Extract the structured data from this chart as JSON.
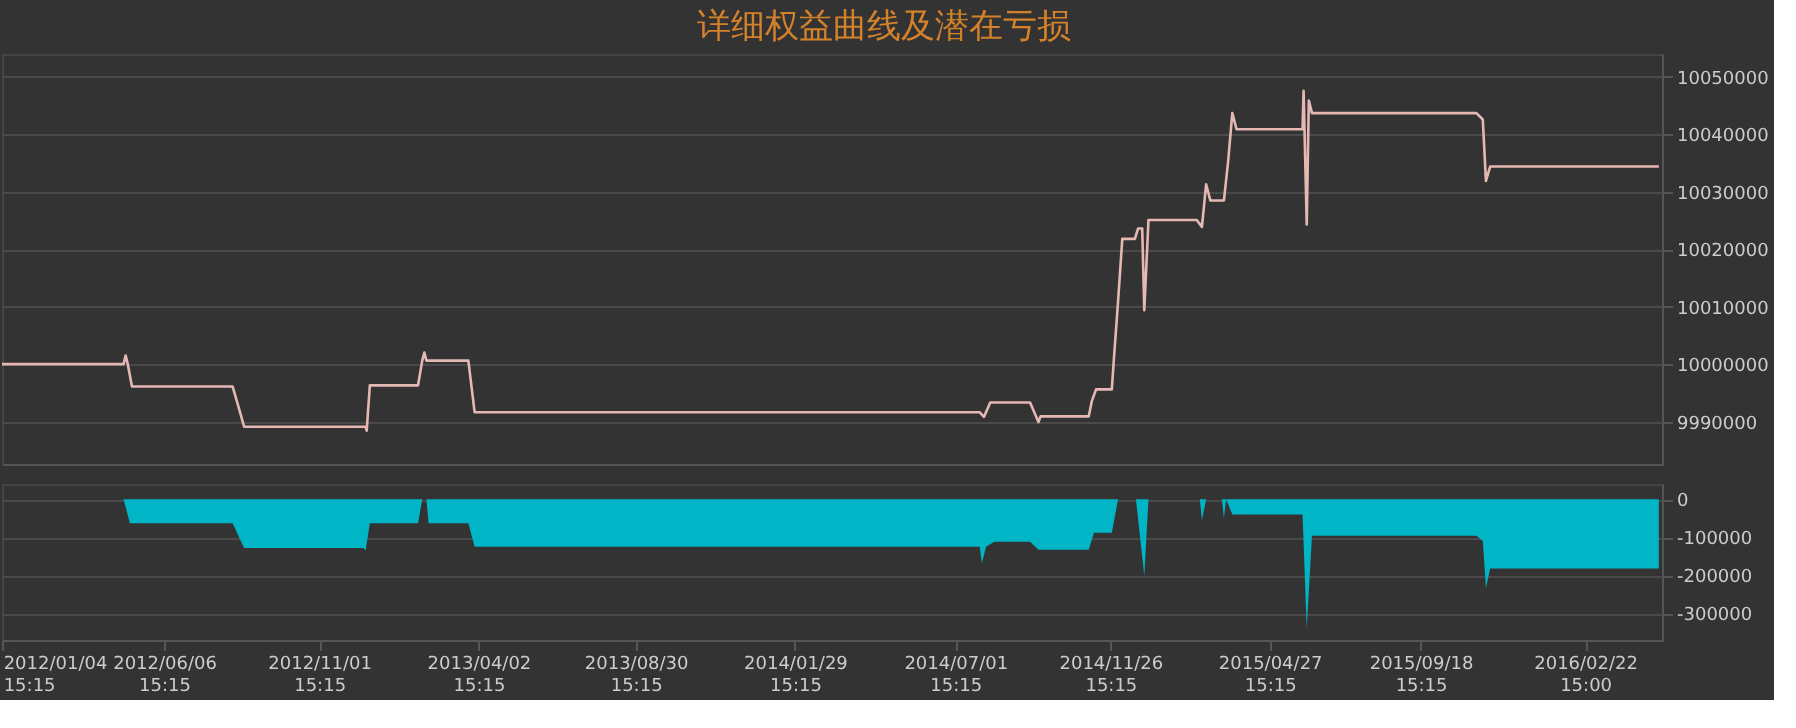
{
  "chart_data": [
    {
      "type": "line",
      "title": "详细权益曲线及潜在亏损",
      "color": "#e6b8b4",
      "x": [
        "2012-01-04",
        "2012-04-29",
        "2012-05-01",
        "2012-05-03",
        "2012-05-07",
        "2012-08-11",
        "2012-08-16",
        "2012-08-22",
        "2012-12-16",
        "2012-12-17",
        "2012-12-20",
        "2013-02-04",
        "2013-02-08",
        "2013-02-10",
        "2013-02-12",
        "2013-03-24",
        "2013-03-30",
        "2014-07-25",
        "2014-07-29",
        "2014-08-04",
        "2014-09-11",
        "2014-09-19",
        "2014-09-21",
        "2014-11-06",
        "2014-11-09",
        "2014-11-13",
        "2014-11-28",
        "2014-11-30",
        "2014-12-04",
        "2014-12-08",
        "2014-12-20",
        "2014-12-23",
        "2014-12-27",
        "2014-12-29",
        "2015-01-02",
        "2015-02-17",
        "2015-02-22",
        "2015-02-26",
        "2015-03-02",
        "2015-03-15",
        "2015-03-19",
        "2015-03-23",
        "2015-03-27",
        "2015-05-29",
        "2015-05-30",
        "2015-06-02",
        "2015-06-04",
        "2015-06-07",
        "2015-11-11",
        "2015-11-17",
        "2015-11-20",
        "2015-11-24",
        "2016-05-03"
      ],
      "values": [
        10000000,
        10000000,
        10001500,
        10000000,
        9996100,
        9996100,
        9993000,
        9989100,
        9989100,
        9988400,
        9996300,
        9996300,
        10000600,
        10002000,
        10000600,
        10000600,
        9991600,
        9991600,
        9990800,
        9993300,
        9993300,
        9989900,
        9990900,
        9990900,
        9993600,
        9995600,
        9995600,
        10000900,
        10011000,
        10021800,
        10021800,
        10023600,
        10023600,
        10009400,
        10025100,
        10025100,
        10023900,
        10031300,
        10028500,
        10028500,
        10035300,
        10043700,
        10040900,
        10040900,
        10047600,
        10024300,
        10045900,
        10043700,
        10043700,
        10042600,
        10031900,
        10034400,
        10034400
      ],
      "xlim": [
        "2012-01-04",
        "2016-05-06"
      ],
      "ylim": [
        9982600,
        10054000
      ],
      "yticks": [
        9990000,
        10000000,
        10010000,
        10020000,
        10030000,
        10040000,
        10050000
      ],
      "grid": "y",
      "tick_labels": "y"
    },
    {
      "type": "area",
      "color": "#00b5c6",
      "x": [
        "2012-01-04",
        "2012-04-29",
        "2012-05-05",
        "2012-08-11",
        "2012-08-22",
        "2012-12-14",
        "2012-12-16",
        "2012-12-20",
        "2013-02-04",
        "2013-02-08",
        "2013-02-12",
        "2013-02-14",
        "2013-03-24",
        "2013-03-30",
        "2014-07-25",
        "2014-07-27",
        "2014-07-31",
        "2014-08-08",
        "2014-09-11",
        "2014-09-19",
        "2014-11-06",
        "2014-11-11",
        "2014-11-28",
        "2014-12-04",
        "2014-12-21",
        "2014-12-29",
        "2015-01-02",
        "2015-02-20",
        "2015-02-22",
        "2015-02-26",
        "2015-03-13",
        "2015-03-15",
        "2015-03-17",
        "2015-03-23",
        "2015-05-29",
        "2015-06-02",
        "2015-06-07",
        "2015-11-11",
        "2015-11-17",
        "2015-11-20",
        "2015-11-24",
        "2016-05-03"
      ],
      "values": [
        0,
        0,
        -63000,
        -63000,
        -128000,
        -128000,
        -135000,
        -63000,
        -63000,
        0,
        0,
        -63000,
        -63000,
        -125000,
        -125000,
        -169000,
        -125000,
        -112000,
        -112000,
        -133000,
        -133000,
        -88000,
        -88000,
        0,
        0,
        -201000,
        0,
        0,
        -55000,
        0,
        0,
        -50000,
        0,
        -40000,
        -40000,
        -340000,
        -96000,
        -96000,
        -110000,
        -234000,
        -182000,
        -182000
      ],
      "xlim": [
        "2012-01-04",
        "2016-05-06"
      ],
      "ylim": [
        -370000,
        40000
      ],
      "yticks": [
        -300000,
        -200000,
        -100000,
        0
      ],
      "xticks": [
        {
          "value": "2012-01-04T15:15",
          "label": "2012/01/04 15:15"
        },
        {
          "value": "2012-06-06T15:15",
          "label": "2012/06/06 15:15"
        },
        {
          "value": "2012-11-01T15:15",
          "label": "2012/11/01 15:15"
        },
        {
          "value": "2013-04-02T15:15",
          "label": "2013/04/02 15:15"
        },
        {
          "value": "2013-08-30T15:15",
          "label": "2013/08/30 15:15"
        },
        {
          "value": "2014-01-29T15:15",
          "label": "2014/01/29 15:15"
        },
        {
          "value": "2014-07-01T15:15",
          "label": "2014/07/01 15:15"
        },
        {
          "value": "2014-11-26T15:15",
          "label": "2014/11/26 15:15"
        },
        {
          "value": "2015-04-27T15:15",
          "label": "2015/04/27 15:15"
        },
        {
          "value": "2015-09-18T15:15",
          "label": "2015/09/18 15:15"
        },
        {
          "value": "2016-02-22T15:00",
          "label": "2016/02/22 15:00"
        }
      ],
      "grid": "y"
    }
  ]
}
